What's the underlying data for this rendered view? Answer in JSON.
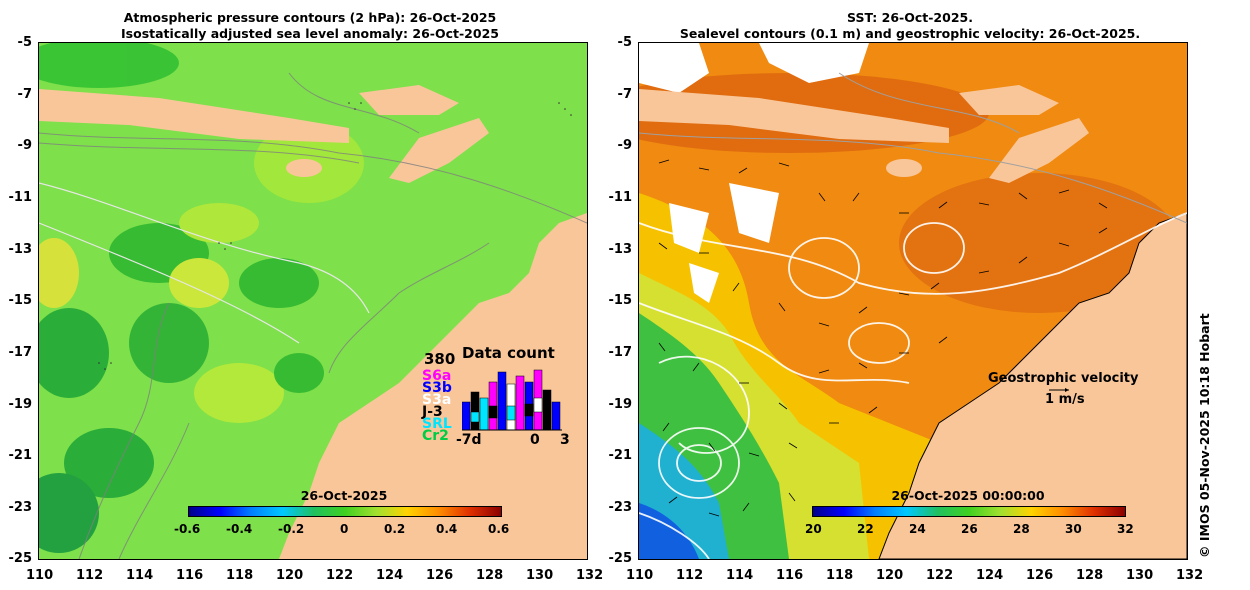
{
  "left_panel": {
    "title_line1": "Atmospheric pressure contours (2 hPa): 26-Oct-2025",
    "title_line2": "Isostatically adjusted sea level anomaly: 26-Oct-2025",
    "colorbar_title": "26-Oct-2025",
    "colorbar_ticks": [
      "-0.6",
      "-0.4",
      "-0.2",
      "0",
      "0.2",
      "0.4",
      "0.6"
    ],
    "data_count": {
      "title": "Data count",
      "max": "380",
      "satellites": [
        {
          "name": "S6a",
          "color": "#ff00ff"
        },
        {
          "name": "S3b",
          "color": "#0000ff"
        },
        {
          "name": "S3a",
          "color": "#ffffff"
        },
        {
          "name": "J-3",
          "color": "#000000"
        },
        {
          "name": "SRL",
          "color": "#00e5ff"
        },
        {
          "name": "Cr2",
          "color": "#00cc44"
        }
      ],
      "x_start": "-7d",
      "x_mid": "0",
      "x_end": "3"
    }
  },
  "right_panel": {
    "title_line1": "SST: 26-Oct-2025.",
    "title_line2": "Sealevel contours (0.1 m) and geostrophic velocity: 26-Oct-2025.",
    "colorbar_title": "26-Oct-2025 00:00:00",
    "colorbar_ticks": [
      "20",
      "22",
      "24",
      "26",
      "28",
      "30",
      "32"
    ],
    "velocity_label": "Geostrophic velocity",
    "velocity_scale": "1 m/s"
  },
  "axes": {
    "y_ticks": [
      "-5",
      "-7",
      "-9",
      "-11",
      "-13",
      "-15",
      "-17",
      "-19",
      "-21",
      "-23",
      "-25"
    ],
    "x_ticks": [
      "110",
      "112",
      "114",
      "116",
      "118",
      "120",
      "122",
      "124",
      "126",
      "128",
      "130",
      "132"
    ]
  },
  "credit": "© IMOS 05-Nov-2025 10:18 Hobart",
  "colors": {
    "land": "#f9c69a",
    "sla_background": "#7ee04a",
    "sst_warm": "#f08a10"
  }
}
